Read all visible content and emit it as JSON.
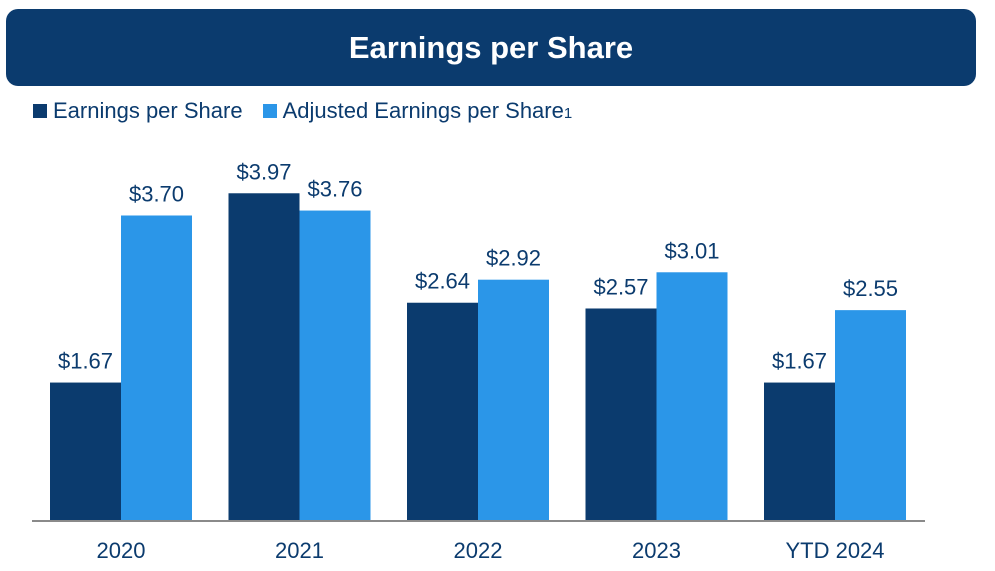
{
  "header": {
    "title": "Earnings per Share"
  },
  "legend": {
    "items": [
      {
        "label": "Earnings per Share",
        "color": "#0b3b6e"
      },
      {
        "label": "Adjusted Earnings per Share",
        "color": "#2b96e8",
        "footnote": "1"
      }
    ]
  },
  "chart_data": {
    "type": "bar",
    "categories": [
      "2020",
      "2021",
      "2022",
      "2023",
      "YTD 2024"
    ],
    "series": [
      {
        "name": "Earnings per Share",
        "color": "#0b3b6e",
        "values": [
          1.67,
          3.97,
          2.64,
          2.57,
          1.67
        ],
        "labels": [
          "$1.67",
          "$3.97",
          "$2.64",
          "$2.57",
          "$1.67"
        ]
      },
      {
        "name": "Adjusted Earnings per Share",
        "color": "#2b96e8",
        "values": [
          3.7,
          3.76,
          2.92,
          3.01,
          2.55
        ],
        "labels": [
          "$3.70",
          "$3.76",
          "$2.92",
          "$3.01",
          "$2.55"
        ]
      }
    ],
    "title": "Earnings per Share",
    "ylim": [
      0,
      4.2
    ],
    "grid": false,
    "legend_position": "top-left"
  }
}
